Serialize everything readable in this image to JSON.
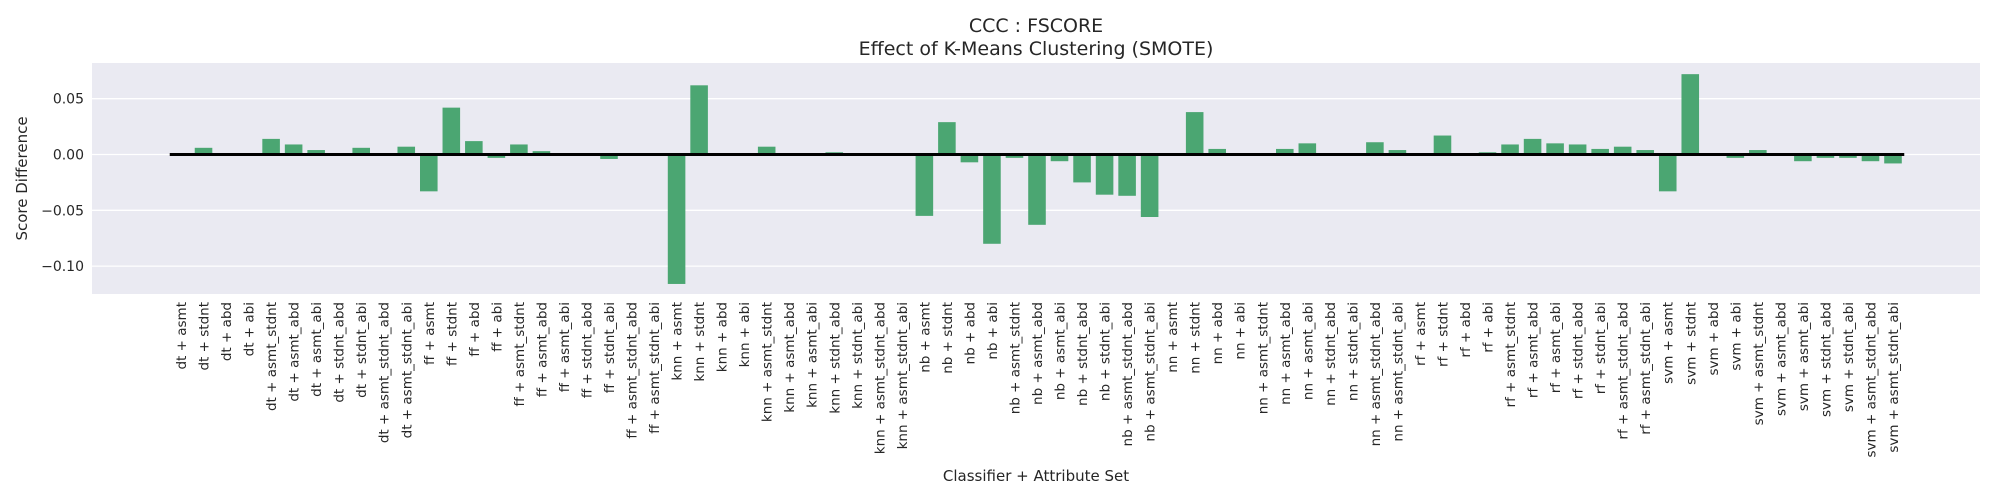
{
  "chart_data": {
    "type": "bar",
    "title": "CCC : FSCORE",
    "subtitle": "Effect of K-Means Clustering (SMOTE)",
    "xlabel": "Classifier + Attribute Set",
    "ylabel": "Score Difference",
    "ylim": [
      -0.125,
      0.082
    ],
    "yticks": [
      -0.1,
      -0.05,
      0.0,
      0.05
    ],
    "ytick_labels": [
      "−0.10",
      "−0.05",
      "0.00",
      "0.05"
    ],
    "grid": true,
    "bar_color": "#4ba672",
    "background_color": "#eaeaf2",
    "categories": [
      "dt + asmt",
      "dt + stdnt",
      "dt + abd",
      "dt + abi",
      "dt + asmt_stdnt",
      "dt + asmt_abd",
      "dt + asmt_abi",
      "dt + stdnt_abd",
      "dt + stdnt_abi",
      "dt + asmt_stdnt_abd",
      "dt + asmt_stdnt_abi",
      "ff + asmt",
      "ff + stdnt",
      "ff + abd",
      "ff + abi",
      "ff + asmt_stdnt",
      "ff + asmt_abd",
      "ff + asmt_abi",
      "ff + stdnt_abd",
      "ff + stdnt_abi",
      "ff + asmt_stdnt_abd",
      "ff + asmt_stdnt_abi",
      "knn + asmt",
      "knn + stdnt",
      "knn + abd",
      "knn + abi",
      "knn + asmt_stdnt",
      "knn + asmt_abd",
      "knn + asmt_abi",
      "knn + stdnt_abd",
      "knn + stdnt_abi",
      "knn + asmt_stdnt_abd",
      "knn + asmt_stdnt_abi",
      "nb + asmt",
      "nb + stdnt",
      "nb + abd",
      "nb + abi",
      "nb + asmt_stdnt",
      "nb + asmt_abd",
      "nb + asmt_abi",
      "nb + stdnt_abd",
      "nb + stdnt_abi",
      "nb + asmt_stdnt_abd",
      "nb + asmt_stdnt_abi",
      "nn + asmt",
      "nn + stdnt",
      "nn + abd",
      "nn + abi",
      "nn + asmt_stdnt",
      "nn + asmt_abd",
      "nn + asmt_abi",
      "nn + stdnt_abd",
      "nn + stdnt_abi",
      "nn + asmt_stdnt_abd",
      "nn + asmt_stdnt_abi",
      "rf + asmt",
      "rf + stdnt",
      "rf + abd",
      "rf + abi",
      "rf + asmt_stdnt",
      "rf + asmt_abd",
      "rf + asmt_abi",
      "rf + stdnt_abd",
      "rf + stdnt_abi",
      "rf + asmt_stdnt_abd",
      "rf + asmt_stdnt_abi",
      "svm + asmt",
      "svm + stdnt",
      "svm + abd",
      "svm + abi",
      "svm + asmt_stdnt",
      "svm + asmt_abd",
      "svm + asmt_abi",
      "svm + stdnt_abd",
      "svm + stdnt_abi",
      "svm + asmt_stdnt_abd",
      "svm + asmt_stdnt_abi"
    ],
    "values": [
      0.0,
      0.006,
      0.0,
      0.0,
      0.014,
      0.009,
      0.004,
      0.0,
      0.006,
      -0.001,
      0.007,
      -0.033,
      0.042,
      0.012,
      -0.003,
      0.009,
      0.003,
      0.0,
      0.0,
      -0.004,
      0.0,
      0.0,
      -0.116,
      0.062,
      0.0,
      -0.001,
      0.007,
      0.0,
      0.0,
      0.002,
      0.0,
      0.0,
      0.0,
      -0.055,
      0.029,
      -0.007,
      -0.08,
      -0.003,
      -0.063,
      -0.006,
      -0.025,
      -0.036,
      -0.037,
      -0.056,
      0.0,
      0.038,
      0.005,
      0.0,
      0.0,
      0.005,
      0.01,
      -0.001,
      -0.001,
      0.011,
      0.004,
      0.0,
      0.017,
      0.0,
      0.002,
      0.009,
      0.014,
      0.01,
      0.009,
      0.005,
      0.007,
      0.004,
      -0.033,
      0.072,
      0.0,
      -0.003,
      0.004,
      -0.001,
      -0.006,
      -0.003,
      -0.003,
      -0.006,
      -0.008
    ]
  }
}
